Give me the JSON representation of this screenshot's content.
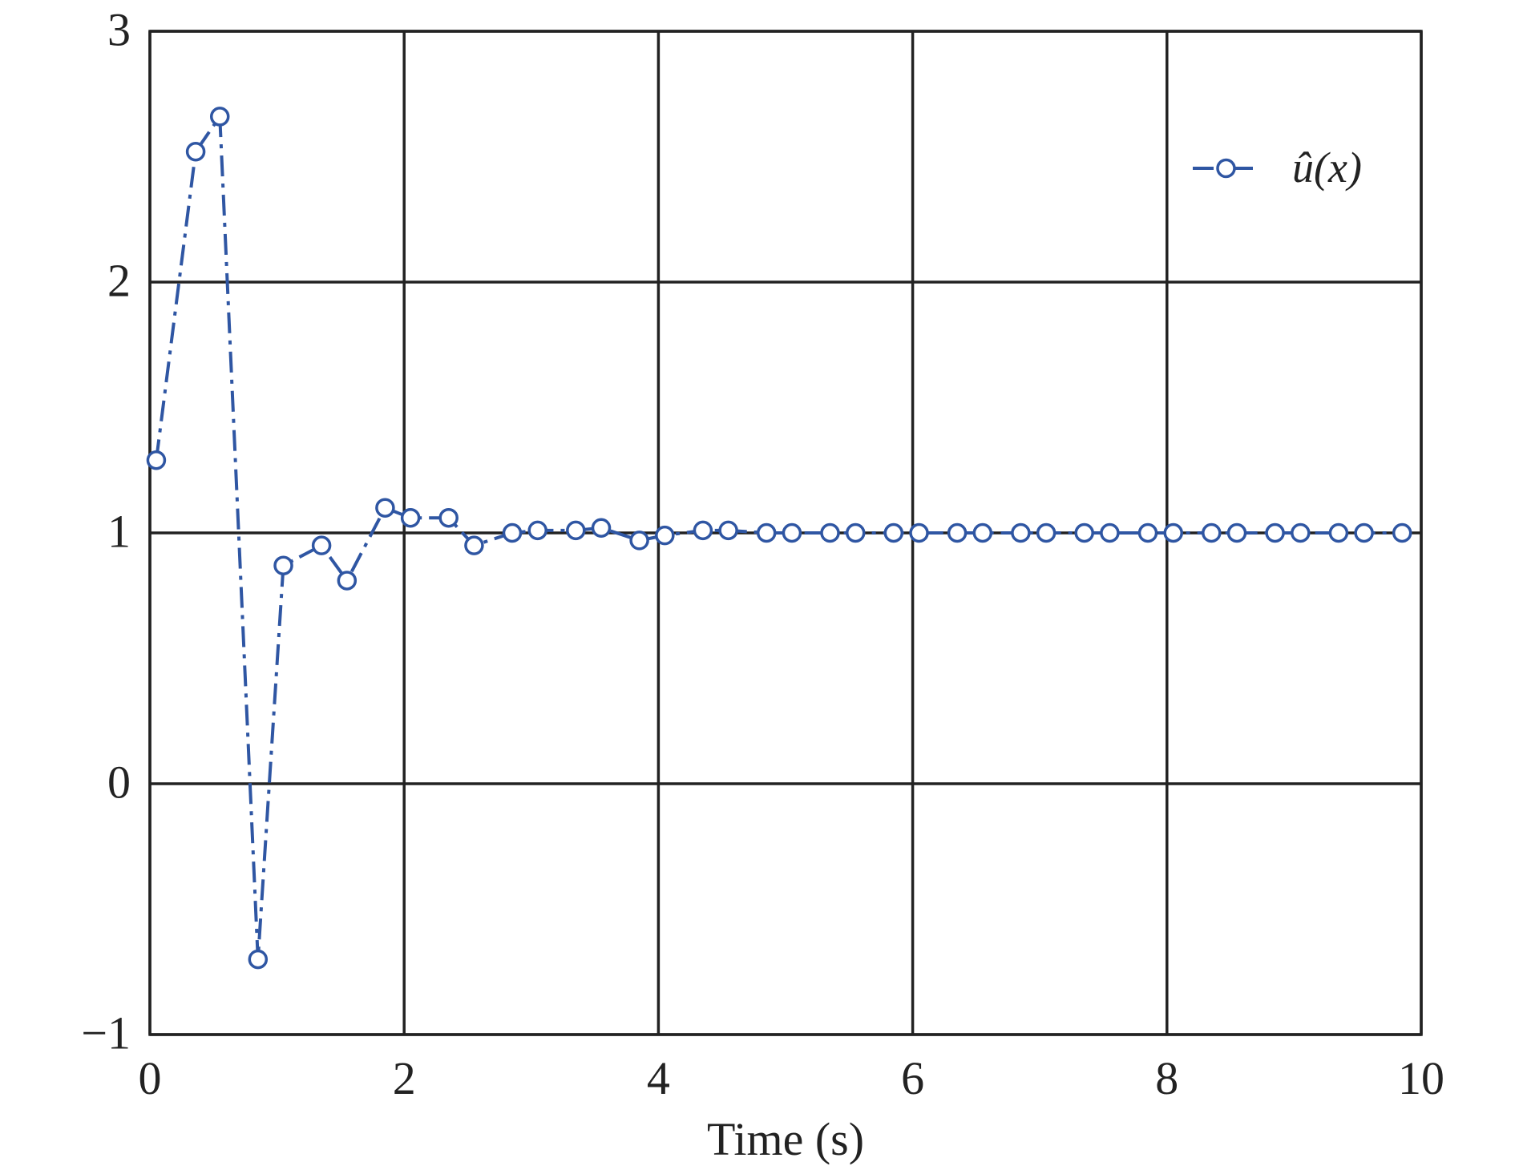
{
  "chart_data": {
    "type": "line",
    "title": "",
    "xlabel": "Time (s)",
    "ylabel": "",
    "xlim": [
      0,
      10
    ],
    "ylim": [
      -1,
      3
    ],
    "x_ticks": [
      0,
      2,
      4,
      6,
      8,
      10
    ],
    "y_ticks": [
      -1,
      0,
      1,
      2,
      3
    ],
    "x_tick_labels": [
      "0",
      "2",
      "4",
      "6",
      "8",
      "10"
    ],
    "y_tick_labels": [
      "−1",
      "0",
      "1",
      "2",
      "3"
    ],
    "grid": true,
    "legend_position": "top-right",
    "series": [
      {
        "name": "û(x)",
        "color": "#2f56a3",
        "line_style": "dash-dot",
        "marker": "open-circle",
        "x": [
          0.05,
          0.36,
          0.55,
          0.85,
          1.05,
          1.35,
          1.55,
          1.85,
          2.05,
          2.35,
          2.55,
          2.85,
          3.05,
          3.35,
          3.55,
          3.85,
          4.05,
          4.35,
          4.55,
          4.85,
          5.05,
          5.35,
          5.55,
          5.85,
          6.05,
          6.35,
          6.55,
          6.85,
          7.05,
          7.35,
          7.55,
          7.85,
          8.05,
          8.35,
          8.55,
          8.85,
          9.05,
          9.35,
          9.55,
          9.85
        ],
        "y": [
          1.29,
          2.52,
          2.66,
          -0.7,
          0.87,
          0.95,
          0.81,
          1.1,
          1.06,
          1.06,
          0.95,
          1.0,
          1.01,
          1.01,
          1.02,
          0.97,
          0.99,
          1.01,
          1.01,
          1.0,
          1.0,
          1.0,
          1.0,
          1.0,
          1.0,
          1.0,
          1.0,
          1.0,
          1.0,
          1.0,
          1.0,
          1.0,
          1.0,
          1.0,
          1.0,
          1.0,
          1.0,
          1.0,
          1.0,
          1.0
        ]
      }
    ]
  }
}
